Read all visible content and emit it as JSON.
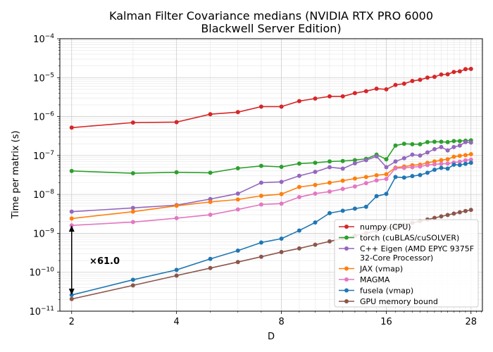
{
  "chart_data": {
    "type": "line",
    "title": "Kalman Filter Covariance medians (NVIDIA RTX PRO 6000\nBlackwell Server Edition)",
    "xlabel": "D",
    "ylabel": "Time per matrix (s)",
    "xscale": "log2",
    "yscale": "log10",
    "xlim": [
      1.85,
      30.2
    ],
    "ylim": [
      1e-11,
      0.0001
    ],
    "xticks": [
      2,
      4,
      8,
      16,
      28
    ],
    "xtick_labels": [
      "2",
      "4",
      "8",
      "16",
      "28"
    ],
    "yticks": [
      1e-11,
      1e-10,
      1e-09,
      1e-08,
      1e-07,
      1e-06,
      1e-05,
      0.0001
    ],
    "ytick_labels": [
      {
        "base": "10",
        "exp": "−11"
      },
      {
        "base": "10",
        "exp": "−10"
      },
      {
        "base": "10",
        "exp": "−9"
      },
      {
        "base": "10",
        "exp": "−8"
      },
      {
        "base": "10",
        "exp": "−7"
      },
      {
        "base": "10",
        "exp": "−6"
      },
      {
        "base": "10",
        "exp": "−5"
      },
      {
        "base": "10",
        "exp": "−4"
      }
    ],
    "grid": true,
    "legend_position": "lower-right",
    "series": [
      {
        "name": "numpy (CPU)",
        "color": "#d62728",
        "x": [
          2,
          3,
          4,
          5,
          6,
          7,
          8,
          9,
          10,
          11,
          12,
          13,
          14,
          15,
          16,
          17,
          18,
          19,
          20,
          21,
          22,
          23,
          24,
          25,
          26,
          27,
          28
        ],
        "y": [
          5.2e-07,
          7e-07,
          7.2e-07,
          1.15e-06,
          1.3e-06,
          1.8e-06,
          1.8e-06,
          2.5e-06,
          2.9e-06,
          3.3e-06,
          3.3e-06,
          4e-06,
          4.5e-06,
          5.2e-06,
          5e-06,
          6.5e-06,
          7e-06,
          8.2e-06,
          8.8e-06,
          1e-05,
          1.05e-05,
          1.2e-05,
          1.22e-05,
          1.4e-05,
          1.45e-05,
          1.65e-05,
          1.68e-05
        ]
      },
      {
        "name": "torch (cuBLAS/cuSOLVER)",
        "color": "#2ca02c",
        "x": [
          2,
          3,
          4,
          5,
          6,
          7,
          8,
          9,
          10,
          11,
          12,
          13,
          14,
          15,
          16,
          17,
          18,
          19,
          20,
          21,
          22,
          23,
          24,
          25,
          26,
          27,
          28
        ],
        "y": [
          4e-08,
          3.5e-08,
          3.7e-08,
          3.6e-08,
          4.7e-08,
          5.4e-08,
          5.1e-08,
          6.2e-08,
          6.5e-08,
          7e-08,
          7.2e-08,
          7.6e-08,
          8.2e-08,
          1.05e-07,
          8e-08,
          1.8e-07,
          2e-07,
          1.95e-07,
          1.95e-07,
          2.2e-07,
          2.25e-07,
          2.25e-07,
          2.2e-07,
          2.35e-07,
          2.35e-07,
          2.4e-07,
          2.45e-07
        ]
      },
      {
        "name": "C++ Eigen (AMD EPYC 9375F\n32-Core Processor)",
        "color": "#9467bd",
        "x": [
          2,
          3,
          4,
          5,
          6,
          7,
          8,
          9,
          10,
          11,
          12,
          13,
          14,
          15,
          16,
          17,
          18,
          19,
          20,
          21,
          22,
          23,
          24,
          25,
          26,
          27,
          28
        ],
        "y": [
          3.6e-09,
          4.5e-09,
          5.3e-09,
          7.6e-09,
          1.05e-08,
          2e-08,
          2.1e-08,
          3e-08,
          3.8e-08,
          5e-08,
          4.6e-08,
          6.3e-08,
          7.6e-08,
          9.5e-08,
          5e-08,
          7e-08,
          8.5e-08,
          1.05e-07,
          1e-07,
          1.2e-07,
          1.45e-07,
          1.65e-07,
          1.35e-07,
          1.65e-07,
          1.8e-07,
          2.2e-07,
          2.15e-07
        ]
      },
      {
        "name": "JAX (vmap)",
        "color": "#ff7f0e",
        "x": [
          2,
          3,
          4,
          5,
          6,
          7,
          8,
          9,
          10,
          11,
          12,
          13,
          14,
          15,
          16,
          17,
          18,
          19,
          20,
          21,
          22,
          23,
          24,
          25,
          26,
          27,
          28
        ],
        "y": [
          2.4e-09,
          3.6e-09,
          5.1e-09,
          6.4e-09,
          7.4e-09,
          9.2e-09,
          1.02e-08,
          1.55e-08,
          1.75e-08,
          2e-08,
          2.25e-08,
          2.55e-08,
          2.8e-08,
          3.1e-08,
          3.3e-08,
          4.9e-08,
          5.2e-08,
          5.6e-08,
          5.8e-08,
          6.5e-08,
          7e-08,
          7.6e-08,
          8e-08,
          9.3e-08,
          9.8e-08,
          1.02e-07,
          1.08e-07
        ]
      },
      {
        "name": "MAGMA",
        "color": "#e377c2",
        "x": [
          2,
          3,
          4,
          5,
          6,
          7,
          8,
          9,
          10,
          11,
          12,
          13,
          14,
          15,
          16,
          17,
          18,
          19,
          20,
          21,
          22,
          23,
          24,
          25,
          26,
          27,
          28
        ],
        "y": [
          1.6e-09,
          1.95e-09,
          2.45e-09,
          3e-09,
          4.1e-09,
          5.5e-09,
          5.8e-09,
          8.5e-09,
          1.05e-08,
          1.18e-08,
          1.38e-08,
          1.6e-08,
          1.95e-08,
          2.3e-08,
          2.5e-08,
          4.7e-08,
          4.8e-08,
          5e-08,
          5.2e-08,
          5.7e-08,
          5.9e-08,
          6.1e-08,
          6.2e-08,
          6.6e-08,
          6.9e-08,
          7.5e-08,
          7.8e-08
        ]
      },
      {
        "name": "fusela (vmap)",
        "color": "#1f77b4",
        "x": [
          2,
          3,
          4,
          5,
          6,
          7,
          8,
          9,
          10,
          11,
          12,
          13,
          14,
          15,
          16,
          17,
          18,
          19,
          20,
          21,
          22,
          23,
          24,
          25,
          26,
          27,
          28
        ],
        "y": [
          2.6e-11,
          6.4e-11,
          1.15e-10,
          2.2e-10,
          3.6e-10,
          5.8e-10,
          7.3e-10,
          1.18e-09,
          1.9e-09,
          3.3e-09,
          3.8e-09,
          4.3e-09,
          4.8e-09,
          9e-09,
          1.03e-08,
          2.8e-08,
          2.7e-08,
          2.95e-08,
          3.15e-08,
          3.6e-08,
          4.3e-08,
          4.8e-08,
          4.6e-08,
          5.8e-08,
          5.7e-08,
          6.1e-08,
          6.5e-08
        ]
      },
      {
        "name": "GPU memory bound",
        "color": "#8c564b",
        "x": [
          2,
          3,
          4,
          5,
          6,
          7,
          8,
          9,
          10,
          11,
          12,
          13,
          14,
          15,
          16,
          17,
          18,
          19,
          20,
          21,
          22,
          23,
          24,
          25,
          26,
          27,
          28
        ],
        "y": [
          2.05e-11,
          4.6e-11,
          8.2e-11,
          1.28e-10,
          1.83e-10,
          2.5e-10,
          3.3e-10,
          4.1e-10,
          5.1e-10,
          6.2e-10,
          7.4e-10,
          8.7e-10,
          1.01e-09,
          1.16e-09,
          1.32e-09,
          1.49e-09,
          1.67e-09,
          1.86e-09,
          2.06e-09,
          2.27e-09,
          2.49e-09,
          2.72e-09,
          2.96e-09,
          3.21e-09,
          3.47e-09,
          3.74e-09,
          4e-09
        ]
      }
    ],
    "annotations": [
      {
        "type": "double-arrow",
        "x": 2,
        "y_from": 2.6e-11,
        "y_to": 1.6e-09,
        "label": "×61.0",
        "label_x": 2.25,
        "label_y": 2e-10
      }
    ]
  }
}
